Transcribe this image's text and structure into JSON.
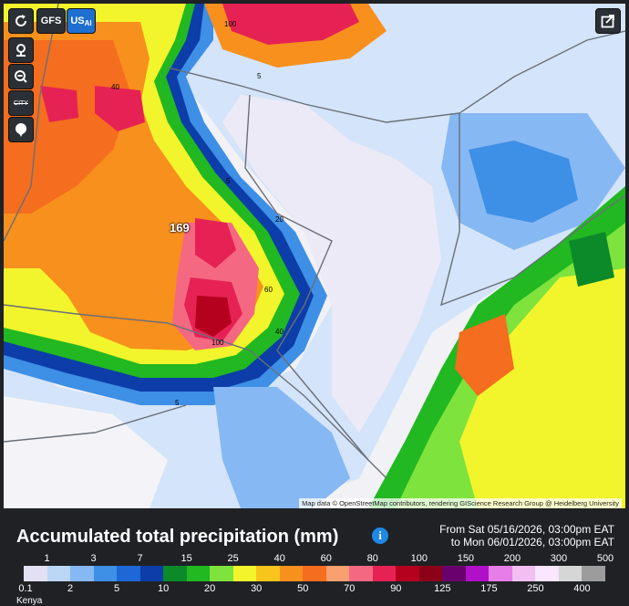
{
  "toolbar": {
    "refresh_icon": "refresh-icon",
    "models": [
      "GFS",
      "US"
    ],
    "model_suffix": "AI",
    "location_icon": "location-pin-icon",
    "zoom_out_icon": "zoom-out-icon",
    "city_label": "CITY",
    "bubble_icon": "speech-bubble-icon",
    "share_icon": "share-icon"
  },
  "map": {
    "peak_value": "169",
    "contour_labels": [
      "100",
      "5",
      "40",
      "60",
      "20",
      "60",
      "40",
      "100",
      "5",
      "5"
    ],
    "attribution": "Map data © OpenStreetMap contributors, rendering GIScience Research Group @ Heidelberg University"
  },
  "panel": {
    "title": "Accumulated total precipitation (mm)",
    "info_icon": "i",
    "range_line1": "From Sat 05/16/2026, 03:00pm EAT",
    "range_line2": "to Mon 06/01/2026, 03:00pm EAT",
    "country": "Kenya"
  },
  "legend": {
    "colors": [
      "#e2e1f3",
      "#bcd6f6",
      "#86b8f3",
      "#3e8fe6",
      "#1e67d6",
      "#0c3da8",
      "#0c8a2a",
      "#22b821",
      "#7fe33d",
      "#f2f52b",
      "#f7c51c",
      "#f8901d",
      "#f56d1e",
      "#f8a06f",
      "#f56882",
      "#e62255",
      "#b5001e",
      "#8c0018",
      "#6a006e",
      "#b010c8",
      "#e67de8",
      "#f1bff2",
      "#fae6ff",
      "#d6d6d6",
      "#9c9c9c"
    ],
    "top_ticks": [
      "1",
      "3",
      "7",
      "15",
      "25",
      "40",
      "60",
      "80",
      "100",
      "150",
      "200",
      "300",
      "500"
    ],
    "bottom_ticks": [
      "0.1",
      "2",
      "5",
      "10",
      "20",
      "30",
      "50",
      "70",
      "90",
      "125",
      "175",
      "250",
      "400"
    ]
  }
}
